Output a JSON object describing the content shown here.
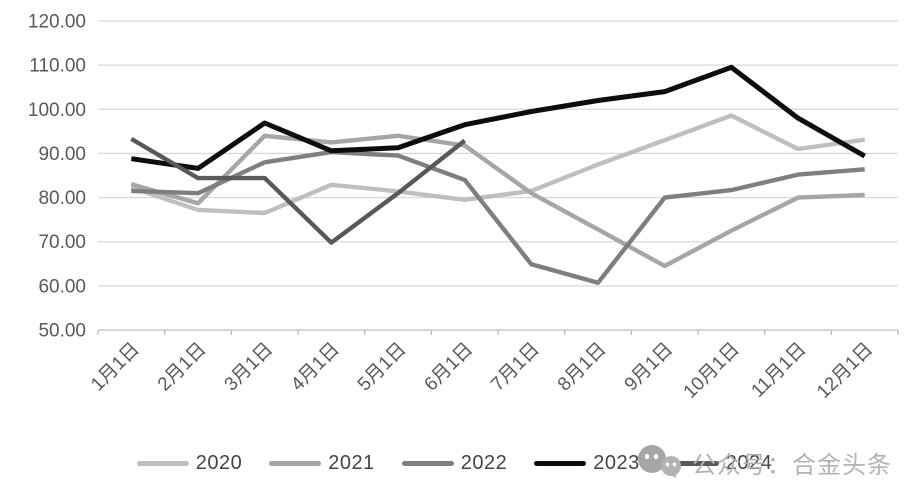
{
  "watermark": {
    "text": "公众号：合金头条"
  },
  "chart_data": {
    "type": "line",
    "title": "",
    "xlabel": "",
    "ylabel": "",
    "grid": true,
    "legend_position": "bottom",
    "ylim": [
      50,
      120
    ],
    "ytick_values": [
      120,
      110,
      100,
      90,
      80,
      70,
      60,
      50
    ],
    "ytick_labels": [
      "120.00",
      "110.00",
      "100.00",
      "90.00",
      "80.00",
      "70.00",
      "60.00",
      "50.00"
    ],
    "categories": [
      "1月1日",
      "2月1日",
      "3月1日",
      "4月1日",
      "5月1日",
      "6月1日",
      "7月1日",
      "8月1日",
      "9月1日",
      "10月1日",
      "11月1日",
      "12月1日"
    ],
    "series": [
      {
        "name": "2020",
        "color": "#bfbfbf",
        "values": [
          82.3,
          77.2,
          76.5,
          82.9,
          81.4,
          79.5,
          81.5,
          87.5,
          93.0,
          98.6,
          91.0,
          93.1
        ]
      },
      {
        "name": "2021",
        "color": "#a6a6a6",
        "values": [
          83.0,
          78.7,
          94.0,
          92.5,
          94.0,
          91.8,
          81.0,
          72.8,
          64.5,
          72.5,
          80.0,
          80.6
        ]
      },
      {
        "name": "2022",
        "color": "#7f7f7f",
        "values": [
          81.5,
          81.0,
          88.0,
          90.3,
          89.5,
          84.0,
          64.9,
          60.7,
          80.0,
          81.7,
          85.2,
          86.4
        ]
      },
      {
        "name": "2023",
        "color": "#0d0d0d",
        "values": [
          88.8,
          86.6,
          96.9,
          90.6,
          91.3,
          96.5,
          99.5,
          102.0,
          104.0,
          109.5,
          98.0,
          89.4
        ]
      },
      {
        "name": "2024",
        "color": "#595959",
        "values": [
          93.3,
          84.4,
          84.4,
          69.8,
          81.0,
          92.9,
          null,
          null,
          null,
          null,
          null,
          null
        ]
      }
    ],
    "colors": {
      "grid": "#d9d9d9",
      "axis": "#bfbfbf",
      "tick_label": "#595959"
    }
  }
}
